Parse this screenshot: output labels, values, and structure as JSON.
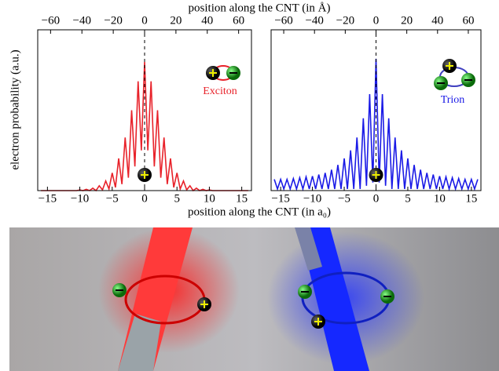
{
  "chart_data": [
    {
      "type": "line",
      "x2label": "position along the CNT (in Å)",
      "xlabel": "position along the CNT (in a₀)",
      "ylabel": "electron probability (a.u.)",
      "annotation": "Exciton",
      "xlim": [
        -16.5,
        16.5
      ],
      "x2lim": [
        -68.2,
        68.2
      ],
      "ylim": [
        0,
        1
      ],
      "xticks": [
        {
          "value": -15,
          "label": "−15"
        },
        {
          "value": -10,
          "label": "−10"
        },
        {
          "value": -5,
          "label": "−5"
        },
        0,
        5,
        10,
        15
      ],
      "x2ticks": [
        {
          "value": -60,
          "label": "−60"
        },
        {
          "value": -40,
          "label": "−40"
        },
        {
          "value": -20,
          "label": "−20"
        },
        0,
        20,
        40,
        60
      ],
      "x": [
        -16,
        -15.5,
        -15,
        -14.5,
        -14,
        -13.5,
        -13,
        -12.5,
        -12,
        -11.5,
        -11,
        -10.5,
        -10,
        -9.5,
        -9,
        -8.5,
        -8,
        -7.5,
        -7,
        -6.5,
        -6,
        -5.5,
        -5,
        -4.5,
        -4,
        -3.5,
        -3,
        -2.5,
        -2,
        -1.5,
        -1,
        -0.5,
        0,
        0.5,
        1,
        1.5,
        2,
        2.5,
        3,
        3.5,
        4,
        4.5,
        5,
        5.5,
        6,
        6.5,
        7,
        7.5,
        8,
        8.5,
        9,
        9.5,
        10,
        10.5,
        11,
        11.5,
        12,
        12.5,
        13,
        13.5,
        14,
        14.5,
        15,
        15.5,
        16
      ],
      "series": [
        {
          "color": "#e8222a",
          "values": [
            0,
            0,
            0,
            0,
            0,
            0,
            0,
            0,
            0,
            0,
            0,
            0,
            0.004,
            0,
            0.008,
            0,
            0.015,
            0,
            0.03,
            0.005,
            0.06,
            0.01,
            0.11,
            0.02,
            0.2,
            0.04,
            0.33,
            0.08,
            0.5,
            0.15,
            0.68,
            0.25,
            0.8,
            0.25,
            0.68,
            0.15,
            0.5,
            0.08,
            0.33,
            0.04,
            0.2,
            0.02,
            0.11,
            0.01,
            0.06,
            0.005,
            0.03,
            0,
            0.015,
            0,
            0.008,
            0,
            0.004,
            0,
            0,
            0,
            0,
            0,
            0,
            0,
            0,
            0,
            0,
            0,
            0
          ]
        }
      ]
    },
    {
      "type": "line",
      "annotation": "Trion",
      "xlim": [
        -16.5,
        16.5
      ],
      "x2lim": [
        -68.2,
        68.2
      ],
      "ylim": [
        0,
        1
      ],
      "xticks": [
        {
          "value": -15,
          "label": "−15"
        },
        {
          "value": -10,
          "label": "−10"
        },
        {
          "value": -5,
          "label": "−5"
        },
        0,
        5,
        10,
        15
      ],
      "x2ticks": [
        {
          "value": -60,
          "label": "−60"
        },
        {
          "value": -40,
          "label": "−40"
        },
        {
          "value": -20,
          "label": "−20"
        },
        0,
        20,
        40,
        60
      ],
      "x": [
        -16,
        -15.5,
        -15,
        -14.5,
        -14,
        -13.5,
        -13,
        -12.5,
        -12,
        -11.5,
        -11,
        -10.5,
        -10,
        -9.5,
        -9,
        -8.5,
        -8,
        -7.5,
        -7,
        -6.5,
        -6,
        -5.5,
        -5,
        -4.5,
        -4,
        -3.5,
        -3,
        -2.5,
        -2,
        -1.5,
        -1,
        -0.5,
        0,
        0.5,
        1,
        1.5,
        2,
        2.5,
        3,
        3.5,
        4,
        4.5,
        5,
        5.5,
        6,
        6.5,
        7,
        7.5,
        8,
        8.5,
        9,
        9.5,
        10,
        10.5,
        11,
        11.5,
        12,
        12.5,
        13,
        13.5,
        14,
        14.5,
        15,
        15.5,
        16
      ],
      "series": [
        {
          "color": "#1a1ae6",
          "values": [
            0.07,
            0.01,
            0.07,
            0.01,
            0.07,
            0.01,
            0.075,
            0.01,
            0.08,
            0.01,
            0.085,
            0.01,
            0.09,
            0.01,
            0.1,
            0.01,
            0.11,
            0.01,
            0.13,
            0.01,
            0.16,
            0.01,
            0.2,
            0.01,
            0.25,
            0.01,
            0.33,
            0.01,
            0.45,
            0.03,
            0.6,
            0.05,
            0.82,
            0.05,
            0.6,
            0.03,
            0.45,
            0.01,
            0.33,
            0.01,
            0.25,
            0.01,
            0.2,
            0.01,
            0.16,
            0.01,
            0.13,
            0.01,
            0.11,
            0.01,
            0.1,
            0.01,
            0.09,
            0.01,
            0.085,
            0.01,
            0.08,
            0.01,
            0.075,
            0.01,
            0.07,
            0.01,
            0.07,
            0.01,
            0.07
          ]
        }
      ]
    }
  ]
}
